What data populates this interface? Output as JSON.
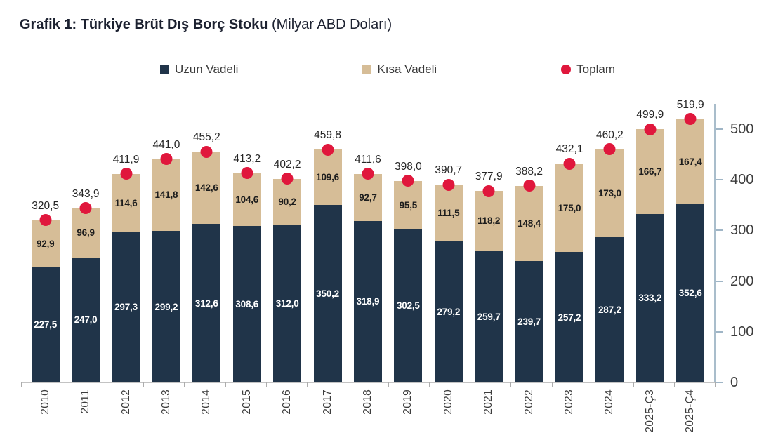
{
  "title": {
    "bold": "Grafik 1: Türkiye Brüt Dış Borç Stoku",
    "normal": " (Milyar ABD Doları)"
  },
  "legend": [
    {
      "label": "Uzun Vadeli",
      "marker": "square",
      "color": "#203449"
    },
    {
      "label": "Kısa Vadeli",
      "marker": "square",
      "color": "#d6bd97"
    },
    {
      "label": "Toplam",
      "marker": "circle",
      "color": "#e0173c"
    }
  ],
  "chart_data": {
    "type": "bar",
    "stacked": true,
    "title": "Grafik 1: Türkiye Brüt Dış Borç Stoku (Milyar ABD Doları)",
    "categories": [
      "2010",
      "2011",
      "2012",
      "2013",
      "2014",
      "2015",
      "2016",
      "2017",
      "2018",
      "2019",
      "2020",
      "2021",
      "2022",
      "2023",
      "2024",
      "2025-Ç3",
      "2025-Ç4"
    ],
    "series": [
      {
        "name": "Uzun Vadeli",
        "color": "#203449",
        "label_color": "#ffffff",
        "values": [
          227.5,
          247.0,
          297.3,
          299.2,
          312.6,
          308.6,
          312.0,
          350.2,
          318.9,
          302.5,
          279.2,
          259.7,
          239.7,
          257.2,
          287.2,
          333.2,
          352.6
        ]
      },
      {
        "name": "Kısa Vadeli",
        "color": "#d6bd97",
        "label_color": "#1d1d1d",
        "values": [
          92.9,
          96.9,
          114.6,
          141.8,
          142.6,
          104.6,
          90.2,
          109.6,
          92.7,
          95.5,
          111.5,
          118.2,
          148.4,
          175.0,
          173.0,
          166.7,
          167.4
        ]
      }
    ],
    "totals": [
      320.5,
      343.9,
      411.9,
      441.0,
      455.2,
      413.2,
      402.2,
      459.8,
      411.6,
      398.0,
      390.7,
      377.9,
      388.2,
      432.1,
      460.2,
      499.9,
      519.9
    ],
    "total_marker": {
      "name": "Toplam",
      "shape": "circle",
      "color": "#e0173c"
    },
    "ylim": [
      0,
      550
    ],
    "yticks": [
      0,
      100,
      200,
      300,
      400,
      500
    ],
    "xlabel": "",
    "ylabel": "",
    "legend_position": "top",
    "grid": false,
    "number_format": "comma-decimal"
  }
}
